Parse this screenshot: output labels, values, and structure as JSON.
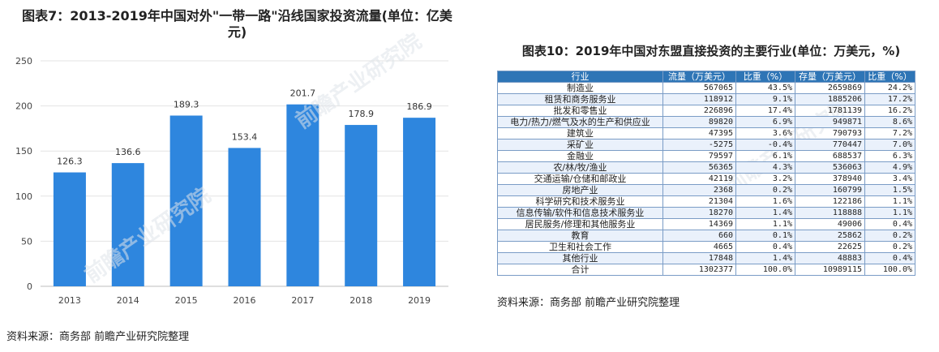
{
  "chart_data": [
    {
      "type": "bar",
      "title": "图表7：2013-2019年中国对外\"一带一路\"沿线国家投资流量(单位：亿美元)",
      "categories": [
        "2013",
        "2014",
        "2015",
        "2016",
        "2017",
        "2018",
        "2019"
      ],
      "values": [
        126.3,
        136.6,
        189.3,
        153.4,
        201.7,
        178.9,
        186.9
      ],
      "value_labels": [
        "126.3",
        "136.6",
        "189.3",
        "153.4",
        "201.7",
        "178.9",
        "186.9"
      ],
      "yticks": [
        "0",
        "50",
        "100",
        "150",
        "200",
        "250"
      ],
      "ylim": [
        0,
        250
      ],
      "grid": true,
      "color": "#2e86de"
    },
    {
      "type": "table",
      "title": "图表10：2019年中国对东盟直接投资的主要行业(单位：万美元，%)",
      "columns": [
        "行业",
        "流量（万美元）",
        "比重（%）",
        "存量（万美元）",
        "比重（%）"
      ],
      "rows": [
        [
          "制造业",
          "567065",
          "43.5%",
          "2659869",
          "24.2%"
        ],
        [
          "租赁和商务服务业",
          "118912",
          "9.1%",
          "1885206",
          "17.2%"
        ],
        [
          "批发和零售业",
          "226896",
          "17.4%",
          "1781139",
          "16.2%"
        ],
        [
          "电力/热力/燃气及水的生产和供应业",
          "89820",
          "6.9%",
          "949871",
          "8.6%"
        ],
        [
          "建筑业",
          "47395",
          "3.6%",
          "790793",
          "7.2%"
        ],
        [
          "采矿业",
          "-5275",
          "-0.4%",
          "770447",
          "7.0%"
        ],
        [
          "金融业",
          "79597",
          "6.1%",
          "688537",
          "6.3%"
        ],
        [
          "农/林/牧/渔业",
          "56365",
          "4.3%",
          "536063",
          "4.9%"
        ],
        [
          "交通运输/仓储和邮政业",
          "42119",
          "3.2%",
          "378940",
          "3.4%"
        ],
        [
          "房地产业",
          "2368",
          "0.2%",
          "160799",
          "1.5%"
        ],
        [
          "科学研究和技术服务业",
          "21304",
          "1.6%",
          "122186",
          "1.1%"
        ],
        [
          "信息传输/软件和信息技术服务业",
          "18270",
          "1.4%",
          "118888",
          "1.1%"
        ],
        [
          "居民服务/修理和其他服务业",
          "14369",
          "1.1%",
          "49006",
          "0.4%"
        ],
        [
          "教育",
          "660",
          "0.1%",
          "25862",
          "0.2%"
        ],
        [
          "卫生和社会工作",
          "4665",
          "0.4%",
          "22625",
          "0.2%"
        ],
        [
          "其他行业",
          "17848",
          "1.4%",
          "48883",
          "0.4%"
        ],
        [
          "合计",
          "1302377",
          "100.0%",
          "10989115",
          "100.0%"
        ]
      ]
    }
  ],
  "source_left": "资料来源：商务部 前瞻产业研究院整理",
  "source_right": "资料来源：商务部 前瞻产业研究院整理",
  "watermark": "前瞻产业研究院",
  "colors": {
    "bar": "#2e86de",
    "header": "#2e75b6",
    "grid": "#e3e3e3"
  }
}
